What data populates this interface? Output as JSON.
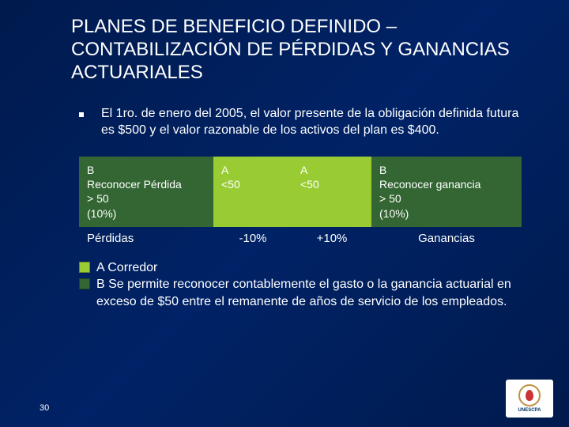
{
  "title": "PLANES DE BENEFICIO DEFINIDO – CONTABILIZACIÓN DE PÉRDIDAS Y GANANCIAS ACTUARIALES",
  "bullet": "El 1ro. de enero del 2005, el valor presente de la obligación definida futura es $500 y el valor razonable de los activos del plan es $400.",
  "corridor": {
    "b_left": {
      "label": "B",
      "text": "Reconocer Pérdida",
      "threshold": "> 50",
      "pct": "(10%)",
      "bg": "#336633"
    },
    "a_left": {
      "label": "A",
      "text": "<50",
      "bg": "#99cc33"
    },
    "a_right": {
      "label": "A",
      "text": "<50",
      "bg": "#99cc33"
    },
    "b_right": {
      "label": "B",
      "text": "Reconocer ganancia",
      "threshold": "> 50",
      "pct": "(10%)",
      "bg": "#336633"
    }
  },
  "axis": {
    "losses": "Pérdidas",
    "neg": "-10%",
    "pos": "+10%",
    "gains": "Ganancias"
  },
  "legend": {
    "a": "A Corredor",
    "b": "B Se permite reconocer contablemente el gasto o la ganancia actuarial en exceso de $50 entre el remanente de años de servicio de los empleados."
  },
  "page_num": "30",
  "logo_text": "UNESCPA",
  "colors": {
    "background": "#001a4d",
    "text": "#ffffff",
    "corridor_a": "#99cc33",
    "corridor_b": "#336633"
  }
}
